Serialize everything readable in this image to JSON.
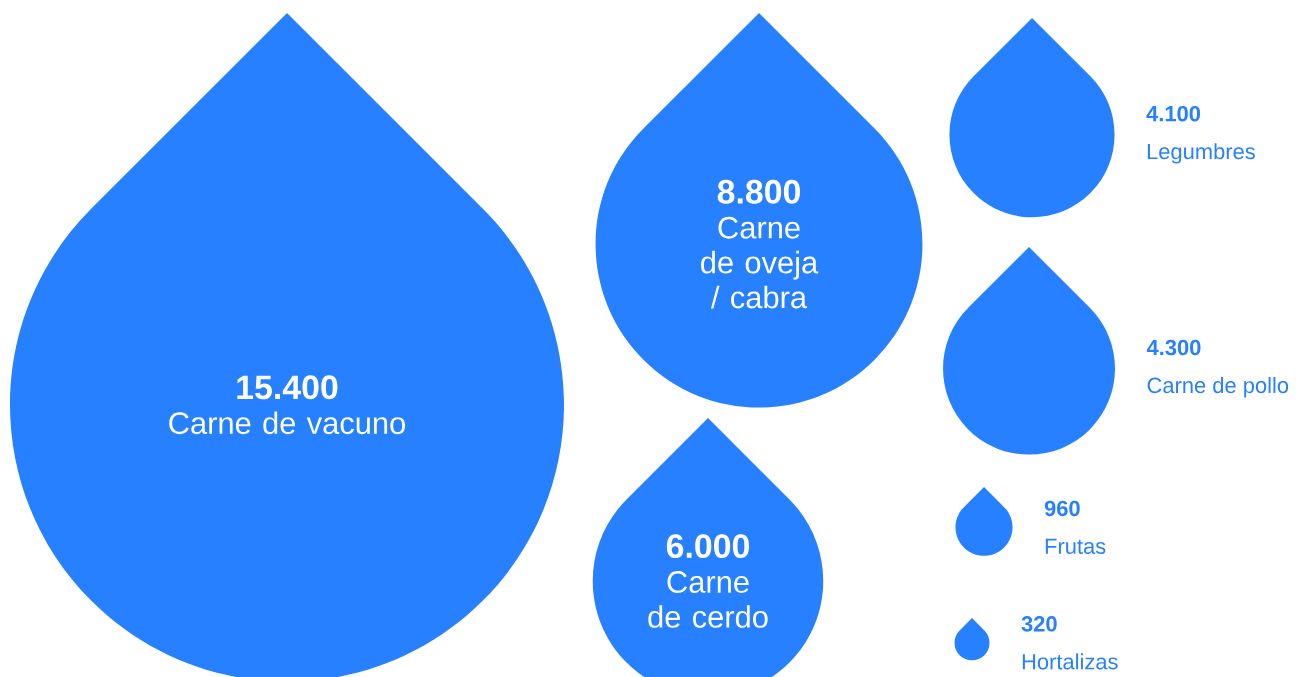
{
  "chart_data": {
    "type": "other",
    "categories": [
      "Carne de vacuno",
      "Carne de oveja / cabra",
      "Carne de cerdo",
      "Legumbres",
      "Carne de pollo",
      "Frutas",
      "Hortalizas"
    ],
    "values": [
      15400,
      8800,
      6000,
      4100,
      4300,
      960,
      320
    ],
    "value_labels": [
      "15.400",
      "8.800",
      "6.000",
      "4.100",
      "4.300",
      "960",
      "320"
    ],
    "color": "#2680ff"
  }
}
